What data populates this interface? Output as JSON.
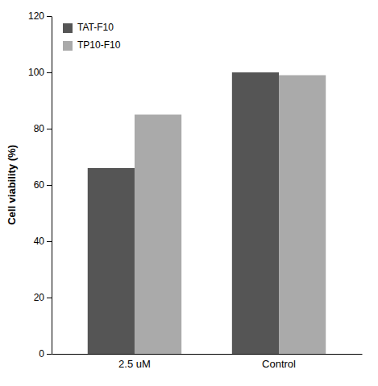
{
  "chart_data": {
    "type": "bar",
    "ylabel": "Cell viability (%)",
    "categories": [
      "2.5 uM",
      "Control"
    ],
    "series": [
      {
        "name": "TAT-F10",
        "color": "#555555",
        "values": [
          66,
          100
        ]
      },
      {
        "name": "TP10-F10",
        "color": "#aaaaaa",
        "values": [
          85,
          99
        ]
      }
    ],
    "ylim": [
      0,
      120
    ],
    "yticks": [
      0,
      20,
      40,
      60,
      80,
      100,
      120
    ],
    "legend": "upper left",
    "grid": false
  }
}
